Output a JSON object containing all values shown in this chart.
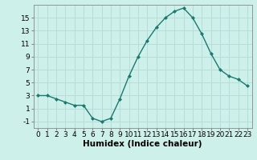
{
  "x": [
    0,
    1,
    2,
    3,
    4,
    5,
    6,
    7,
    8,
    9,
    10,
    11,
    12,
    13,
    14,
    15,
    16,
    17,
    18,
    19,
    20,
    21,
    22,
    23
  ],
  "y": [
    3,
    3,
    2.5,
    2,
    1.5,
    1.5,
    -0.5,
    -1,
    -0.5,
    2.5,
    6,
    9,
    11.5,
    13.5,
    15,
    16,
    16.5,
    15,
    12.5,
    9.5,
    7,
    6,
    5.5,
    4.5
  ],
  "line_color": "#1a7a6e",
  "marker": "D",
  "marker_size": 2.0,
  "bg_color": "#cef0ea",
  "grid_color": "#b8ddd8",
  "xlabel": "Humidex (Indice chaleur)",
  "ylabel": "",
  "xlim": [
    -0.5,
    23.5
  ],
  "ylim": [
    -2,
    17
  ],
  "yticks": [
    -1,
    1,
    3,
    5,
    7,
    9,
    11,
    13,
    15
  ],
  "xticks": [
    0,
    1,
    2,
    3,
    4,
    5,
    6,
    7,
    8,
    9,
    10,
    11,
    12,
    13,
    14,
    15,
    16,
    17,
    18,
    19,
    20,
    21,
    22,
    23
  ],
  "xtick_labels": [
    "0",
    "1",
    "2",
    "3",
    "4",
    "5",
    "6",
    "7",
    "8",
    "9",
    "10",
    "11",
    "12",
    "13",
    "14",
    "15",
    "16",
    "17",
    "18",
    "19",
    "20",
    "21",
    "22",
    "23"
  ],
  "tick_fontsize": 6.5,
  "xlabel_fontsize": 7.5,
  "line_width": 1.0
}
